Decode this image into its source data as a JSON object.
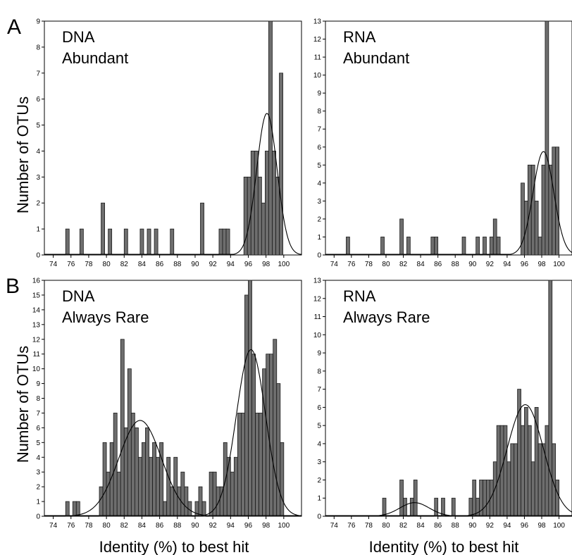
{
  "panel_letters": [
    "A",
    "B"
  ],
  "ylabel": "Number of OTUs",
  "xlabel": "Identity (%) to best hit",
  "colors": {
    "bar_fill": "#6e6e6e",
    "bar_stroke": "#1a1a1a",
    "axis": "#000000",
    "curve": "#000000"
  },
  "chart_data": [
    {
      "type": "bar",
      "panel": "A",
      "title_lines": [
        "DNA",
        "Abundant"
      ],
      "xlim": [
        73,
        102
      ],
      "xticks": [
        74,
        76,
        78,
        80,
        82,
        84,
        86,
        88,
        90,
        92,
        94,
        96,
        98,
        100
      ],
      "ylim": [
        0,
        9
      ],
      "yticks": [
        0,
        1,
        2,
        3,
        4,
        5,
        6,
        7,
        8,
        9
      ],
      "bars": [
        {
          "x": 75.6,
          "y": 1
        },
        {
          "x": 77.2,
          "y": 1
        },
        {
          "x": 79.6,
          "y": 2
        },
        {
          "x": 80.4,
          "y": 1
        },
        {
          "x": 82.2,
          "y": 1
        },
        {
          "x": 84.0,
          "y": 1
        },
        {
          "x": 84.8,
          "y": 1
        },
        {
          "x": 85.6,
          "y": 1
        },
        {
          "x": 87.4,
          "y": 1
        },
        {
          "x": 90.8,
          "y": 2
        },
        {
          "x": 92.9,
          "y": 1
        },
        {
          "x": 93.3,
          "y": 1
        },
        {
          "x": 93.7,
          "y": 1
        },
        {
          "x": 95.7,
          "y": 3
        },
        {
          "x": 96.1,
          "y": 3
        },
        {
          "x": 96.5,
          "y": 4
        },
        {
          "x": 96.9,
          "y": 4
        },
        {
          "x": 97.3,
          "y": 3
        },
        {
          "x": 97.7,
          "y": 2
        },
        {
          "x": 98.1,
          "y": 4
        },
        {
          "x": 98.5,
          "y": 9
        },
        {
          "x": 98.9,
          "y": 4
        },
        {
          "x": 99.3,
          "y": 3
        },
        {
          "x": 99.7,
          "y": 7
        }
      ],
      "curves": [
        {
          "mean": 98.1,
          "sd": 1.15,
          "peak": 5.45
        }
      ]
    },
    {
      "type": "bar",
      "panel": "A",
      "title_lines": [
        "RNA",
        "Abundant"
      ],
      "xlim": [
        73,
        101.5
      ],
      "xticks": [
        74,
        76,
        78,
        80,
        82,
        84,
        86,
        88,
        90,
        92,
        94,
        96,
        98,
        100
      ],
      "ylim": [
        0,
        13
      ],
      "yticks": [
        0,
        1,
        2,
        3,
        4,
        5,
        6,
        7,
        8,
        9,
        10,
        11,
        12,
        13
      ],
      "bars": [
        {
          "x": 75.6,
          "y": 1
        },
        {
          "x": 79.6,
          "y": 1
        },
        {
          "x": 81.8,
          "y": 2
        },
        {
          "x": 82.6,
          "y": 1
        },
        {
          "x": 85.4,
          "y": 1
        },
        {
          "x": 85.8,
          "y": 1
        },
        {
          "x": 89.0,
          "y": 1
        },
        {
          "x": 90.6,
          "y": 1
        },
        {
          "x": 91.4,
          "y": 1
        },
        {
          "x": 92.2,
          "y": 1
        },
        {
          "x": 92.6,
          "y": 2
        },
        {
          "x": 93.0,
          "y": 1
        },
        {
          "x": 95.8,
          "y": 4
        },
        {
          "x": 96.2,
          "y": 3
        },
        {
          "x": 96.6,
          "y": 5
        },
        {
          "x": 97.0,
          "y": 5
        },
        {
          "x": 97.4,
          "y": 3
        },
        {
          "x": 97.8,
          "y": 1
        },
        {
          "x": 98.2,
          "y": 5
        },
        {
          "x": 98.6,
          "y": 13
        },
        {
          "x": 99.0,
          "y": 5
        },
        {
          "x": 99.4,
          "y": 6
        },
        {
          "x": 99.8,
          "y": 6
        }
      ],
      "curves": [
        {
          "mean": 98.2,
          "sd": 1.2,
          "peak": 5.75
        }
      ]
    },
    {
      "type": "bar",
      "panel": "B",
      "title_lines": [
        "DNA",
        "Always Rare"
      ],
      "xlim": [
        73,
        102
      ],
      "xticks": [
        74,
        76,
        78,
        80,
        82,
        84,
        86,
        88,
        90,
        92,
        94,
        96,
        98,
        100
      ],
      "ylim": [
        0,
        16
      ],
      "yticks": [
        0,
        1,
        2,
        3,
        4,
        5,
        6,
        7,
        8,
        9,
        10,
        11,
        12,
        13,
        14,
        15,
        16
      ],
      "bars": [
        {
          "x": 75.6,
          "y": 1
        },
        {
          "x": 76.4,
          "y": 1
        },
        {
          "x": 76.8,
          "y": 1
        },
        {
          "x": 79.4,
          "y": 2
        },
        {
          "x": 79.8,
          "y": 5
        },
        {
          "x": 80.2,
          "y": 3
        },
        {
          "x": 80.6,
          "y": 5
        },
        {
          "x": 81.0,
          "y": 7
        },
        {
          "x": 81.4,
          "y": 3
        },
        {
          "x": 81.8,
          "y": 12
        },
        {
          "x": 82.2,
          "y": 6
        },
        {
          "x": 82.6,
          "y": 10
        },
        {
          "x": 83.0,
          "y": 7
        },
        {
          "x": 83.4,
          "y": 6
        },
        {
          "x": 83.8,
          "y": 4
        },
        {
          "x": 84.2,
          "y": 5
        },
        {
          "x": 84.6,
          "y": 6
        },
        {
          "x": 85.0,
          "y": 4
        },
        {
          "x": 85.4,
          "y": 5
        },
        {
          "x": 85.8,
          "y": 4
        },
        {
          "x": 86.2,
          "y": 5
        },
        {
          "x": 86.6,
          "y": 1
        },
        {
          "x": 87.0,
          "y": 4
        },
        {
          "x": 87.4,
          "y": 2
        },
        {
          "x": 87.8,
          "y": 4
        },
        {
          "x": 88.2,
          "y": 2
        },
        {
          "x": 88.6,
          "y": 3
        },
        {
          "x": 89.0,
          "y": 2
        },
        {
          "x": 89.4,
          "y": 1
        },
        {
          "x": 90.2,
          "y": 1
        },
        {
          "x": 90.6,
          "y": 2
        },
        {
          "x": 91.0,
          "y": 1
        },
        {
          "x": 91.8,
          "y": 3
        },
        {
          "x": 92.2,
          "y": 3
        },
        {
          "x": 92.6,
          "y": 2
        },
        {
          "x": 93.0,
          "y": 2
        },
        {
          "x": 93.4,
          "y": 5
        },
        {
          "x": 93.8,
          "y": 4
        },
        {
          "x": 94.2,
          "y": 3
        },
        {
          "x": 94.6,
          "y": 4
        },
        {
          "x": 95.0,
          "y": 7
        },
        {
          "x": 95.4,
          "y": 7
        },
        {
          "x": 95.8,
          "y": 15
        },
        {
          "x": 96.2,
          "y": 16
        },
        {
          "x": 96.6,
          "y": 11
        },
        {
          "x": 97.0,
          "y": 7
        },
        {
          "x": 97.4,
          "y": 7
        },
        {
          "x": 97.8,
          "y": 10
        },
        {
          "x": 98.2,
          "y": 11
        },
        {
          "x": 98.6,
          "y": 11
        },
        {
          "x": 99.0,
          "y": 12
        },
        {
          "x": 99.4,
          "y": 9
        },
        {
          "x": 99.8,
          "y": 5
        }
      ],
      "curves": [
        {
          "mean": 83.8,
          "sd": 2.4,
          "peak": 6.5
        },
        {
          "mean": 96.3,
          "sd": 1.65,
          "peak": 11.3
        }
      ]
    },
    {
      "type": "bar",
      "panel": "B",
      "title_lines": [
        "RNA",
        "Always Rare"
      ],
      "xlim": [
        73,
        101.5
      ],
      "xticks": [
        74,
        76,
        78,
        80,
        82,
        84,
        86,
        88,
        90,
        92,
        94,
        96,
        98,
        100
      ],
      "ylim": [
        0,
        13
      ],
      "yticks": [
        0,
        1,
        2,
        3,
        4,
        5,
        6,
        7,
        8,
        9,
        10,
        11,
        12,
        13
      ],
      "bars": [
        {
          "x": 79.8,
          "y": 1
        },
        {
          "x": 81.8,
          "y": 2
        },
        {
          "x": 82.2,
          "y": 1
        },
        {
          "x": 83.0,
          "y": 1
        },
        {
          "x": 83.4,
          "y": 2
        },
        {
          "x": 85.8,
          "y": 1
        },
        {
          "x": 86.6,
          "y": 1
        },
        {
          "x": 87.8,
          "y": 1
        },
        {
          "x": 89.8,
          "y": 1
        },
        {
          "x": 90.2,
          "y": 2
        },
        {
          "x": 90.6,
          "y": 1
        },
        {
          "x": 91.0,
          "y": 2
        },
        {
          "x": 91.4,
          "y": 2
        },
        {
          "x": 91.8,
          "y": 2
        },
        {
          "x": 92.2,
          "y": 2
        },
        {
          "x": 92.6,
          "y": 3
        },
        {
          "x": 93.0,
          "y": 5
        },
        {
          "x": 93.4,
          "y": 5
        },
        {
          "x": 93.8,
          "y": 5
        },
        {
          "x": 94.2,
          "y": 3
        },
        {
          "x": 94.6,
          "y": 4
        },
        {
          "x": 95.0,
          "y": 4
        },
        {
          "x": 95.4,
          "y": 7
        },
        {
          "x": 95.8,
          "y": 5
        },
        {
          "x": 96.2,
          "y": 6
        },
        {
          "x": 96.6,
          "y": 5
        },
        {
          "x": 97.0,
          "y": 3
        },
        {
          "x": 97.4,
          "y": 6
        },
        {
          "x": 97.8,
          "y": 4
        },
        {
          "x": 98.2,
          "y": 4
        },
        {
          "x": 98.6,
          "y": 5
        },
        {
          "x": 99.0,
          "y": 13
        },
        {
          "x": 99.4,
          "y": 4
        },
        {
          "x": 99.8,
          "y": 2
        }
      ],
      "curves": [
        {
          "mean": 83.3,
          "sd": 1.7,
          "peak": 0.75
        },
        {
          "mean": 96.1,
          "sd": 2.1,
          "peak": 6.15
        }
      ]
    }
  ]
}
